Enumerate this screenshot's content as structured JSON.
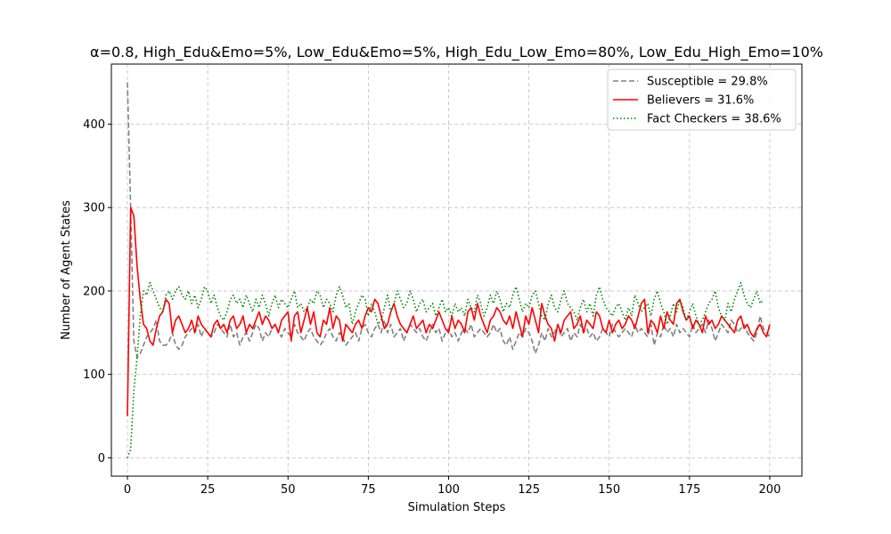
{
  "chart_data": {
    "type": "line",
    "title": "α=0.8, High_Edu&Emo=5%, Low_Edu&Emo=5%, High_Edu_Low_Emo=80%, Low_Edu_High_Emo=10%",
    "xlabel": "Simulation Steps",
    "ylabel": "Number of Agent States",
    "xlim": [
      -5,
      210
    ],
    "ylim": [
      -22,
      472
    ],
    "xticks": [
      0,
      25,
      50,
      75,
      100,
      125,
      150,
      175,
      200
    ],
    "yticks": [
      0,
      100,
      200,
      300,
      400
    ],
    "grid": true,
    "legend_position": "top-right",
    "series": [
      {
        "name": "Susceptible = 29.8%",
        "color": "#808080",
        "style": "dashed",
        "values": [
          450,
          300,
          140,
          120,
          125,
          135,
          145,
          150,
          155,
          165,
          140,
          135,
          135,
          140,
          150,
          135,
          130,
          135,
          145,
          150,
          155,
          150,
          160,
          145,
          155,
          150,
          145,
          150,
          160,
          155,
          150,
          145,
          160,
          145,
          150,
          135,
          145,
          150,
          140,
          150,
          160,
          155,
          140,
          150,
          145,
          155,
          160,
          150,
          145,
          155,
          150,
          145,
          160,
          150,
          145,
          140,
          150,
          155,
          145,
          140,
          135,
          140,
          150,
          155,
          145,
          140,
          150,
          145,
          135,
          140,
          145,
          150,
          140,
          155,
          160,
          150,
          145,
          155,
          160,
          150,
          165,
          150,
          160,
          145,
          150,
          155,
          140,
          150,
          160,
          155,
          150,
          155,
          145,
          140,
          150,
          160,
          150,
          155,
          140,
          150,
          155,
          145,
          150,
          140,
          150,
          155,
          150,
          160,
          145,
          150,
          155,
          150,
          145,
          150,
          160,
          150,
          155,
          140,
          135,
          145,
          130,
          140,
          150,
          145,
          155,
          150,
          140,
          125,
          135,
          150,
          140,
          155,
          145,
          150,
          160,
          145,
          150,
          155,
          140,
          150,
          145,
          160,
          150,
          155,
          145,
          150,
          140,
          145,
          155,
          150,
          145,
          160,
          150,
          145,
          150,
          155,
          150,
          145,
          160,
          150,
          155,
          150,
          145,
          160,
          135,
          150,
          145,
          160,
          150,
          155,
          145,
          160,
          150,
          155,
          150,
          145,
          160,
          150,
          155,
          160,
          150,
          165,
          155,
          140,
          150,
          160,
          155,
          150,
          165,
          160,
          150,
          155,
          160,
          150,
          145,
          140,
          150,
          170,
          155,
          150,
          145
        ]
      },
      {
        "name": "Believers = 31.6%",
        "color": "#ff0000",
        "style": "solid",
        "values": [
          50,
          300,
          290,
          230,
          190,
          160,
          155,
          140,
          135,
          155,
          170,
          175,
          190,
          185,
          150,
          165,
          170,
          160,
          150,
          155,
          165,
          150,
          170,
          160,
          155,
          150,
          145,
          160,
          165,
          155,
          160,
          150,
          165,
          170,
          155,
          160,
          170,
          150,
          160,
          155,
          165,
          175,
          160,
          170,
          165,
          155,
          160,
          150,
          165,
          170,
          175,
          140,
          170,
          175,
          150,
          165,
          180,
          160,
          175,
          150,
          145,
          165,
          160,
          180,
          155,
          170,
          165,
          140,
          160,
          155,
          150,
          160,
          165,
          155,
          170,
          180,
          175,
          190,
          185,
          170,
          155,
          160,
          175,
          185,
          170,
          160,
          155,
          150,
          160,
          170,
          155,
          160,
          165,
          150,
          160,
          155,
          165,
          175,
          165,
          155,
          150,
          170,
          155,
          165,
          160,
          150,
          175,
          180,
          165,
          185,
          170,
          160,
          150,
          165,
          170,
          180,
          175,
          165,
          160,
          170,
          155,
          175,
          160,
          145,
          170,
          160,
          180,
          165,
          150,
          185,
          170,
          160,
          155,
          140,
          160,
          150,
          165,
          170,
          175,
          155,
          160,
          170,
          150,
          165,
          160,
          155,
          175,
          170,
          155,
          150,
          165,
          150,
          160,
          165,
          155,
          160,
          170,
          165,
          155,
          170,
          185,
          190,
          150,
          165,
          160,
          150,
          170,
          155,
          175,
          165,
          160,
          185,
          190,
          175,
          165,
          170,
          155,
          165,
          160,
          150,
          170,
          160,
          165,
          155,
          160,
          170,
          165,
          160,
          155,
          150,
          165,
          170,
          155,
          160,
          150,
          145,
          155,
          160,
          150,
          145,
          160
        ]
      },
      {
        "name": "Fact Checkers = 38.6%",
        "color": "#008000",
        "style": "dotted",
        "values": [
          0,
          10,
          80,
          120,
          170,
          200,
          195,
          210,
          200,
          190,
          180,
          175,
          195,
          200,
          190,
          200,
          205,
          195,
          190,
          200,
          185,
          195,
          180,
          190,
          205,
          200,
          185,
          195,
          180,
          170,
          165,
          175,
          190,
          195,
          185,
          190,
          180,
          195,
          185,
          175,
          190,
          180,
          195,
          185,
          170,
          185,
          195,
          180,
          190,
          185,
          180,
          190,
          200,
          180,
          185,
          175,
          180,
          190,
          185,
          200,
          195,
          180,
          190,
          185,
          175,
          195,
          205,
          195,
          180,
          185,
          160,
          175,
          185,
          195,
          190,
          170,
          185,
          175,
          160,
          165,
          180,
          195,
          175,
          185,
          200,
          190,
          180,
          185,
          200,
          190,
          175,
          185,
          190,
          175,
          180,
          185,
          170,
          180,
          190,
          175,
          180,
          170,
          185,
          175,
          180,
          170,
          190,
          180,
          175,
          195,
          185,
          170,
          180,
          195,
          185,
          200,
          190,
          175,
          185,
          180,
          195,
          205,
          190,
          175,
          185,
          180,
          195,
          200,
          185,
          170,
          165,
          185,
          195,
          180,
          175,
          190,
          200,
          185,
          180,
          175,
          165,
          180,
          190,
          175,
          185,
          170,
          195,
          205,
          190,
          180,
          175,
          170,
          180,
          185,
          175,
          165,
          180,
          170,
          195,
          185,
          175,
          180,
          185,
          170,
          190,
          200,
          185,
          175,
          160,
          170,
          185,
          175,
          190,
          180,
          165,
          175,
          185,
          170,
          160,
          165,
          175,
          185,
          190,
          200,
          180,
          170,
          165,
          185,
          175,
          190,
          200,
          210,
          195,
          185,
          180,
          190,
          200,
          185,
          190
        ]
      }
    ]
  }
}
